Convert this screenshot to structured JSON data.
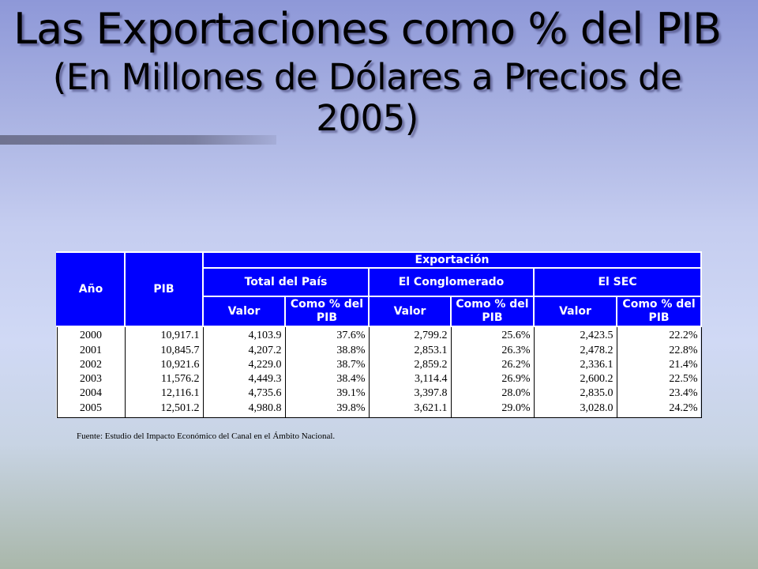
{
  "slide": {
    "title": "Las Exportaciones como % del PIB",
    "subtitle": "(En Millones de Dólares a Precios de 2005)"
  },
  "table": {
    "headers": {
      "year": "Año",
      "pib": "PIB",
      "exportacion": "Exportación",
      "total_pais": "Total del País",
      "conglomerado": "El Conglomerado",
      "sec": "El SEC",
      "valor": "Valor",
      "pct": "Como % del PIB"
    },
    "rows": [
      {
        "year": "2000",
        "pib": "10,917.1",
        "tp_valor": "4,103.9",
        "tp_pct": "37.6%",
        "co_valor": "2,799.2",
        "co_pct": "25.6%",
        "sec_valor": "2,423.5",
        "sec_pct": "22.2%"
      },
      {
        "year": "2001",
        "pib": "10,845.7",
        "tp_valor": "4,207.2",
        "tp_pct": "38.8%",
        "co_valor": "2,853.1",
        "co_pct": "26.3%",
        "sec_valor": "2,478.2",
        "sec_pct": "22.8%"
      },
      {
        "year": "2002",
        "pib": "10,921.6",
        "tp_valor": "4,229.0",
        "tp_pct": "38.7%",
        "co_valor": "2,859.2",
        "co_pct": "26.2%",
        "sec_valor": "2,336.1",
        "sec_pct": "21.4%"
      },
      {
        "year": "2003",
        "pib": "11,576.2",
        "tp_valor": "4,449.3",
        "tp_pct": "38.4%",
        "co_valor": "3,114.4",
        "co_pct": "26.9%",
        "sec_valor": "2,600.2",
        "sec_pct": "22.5%"
      },
      {
        "year": "2004",
        "pib": "12,116.1",
        "tp_valor": "4,735.6",
        "tp_pct": "39.1%",
        "co_valor": "3,397.8",
        "co_pct": "28.0%",
        "sec_valor": "2,835.0",
        "sec_pct": "23.4%"
      },
      {
        "year": "2005",
        "pib": "12,501.2",
        "tp_valor": "4,980.8",
        "tp_pct": "39.8%",
        "co_valor": "3,621.1",
        "co_pct": "29.0%",
        "sec_valor": "3,028.0",
        "sec_pct": "24.2%"
      }
    ]
  },
  "source": "Fuente: Estudio del Impacto Económico del Canal en el Ámbito Nacional.",
  "colors": {
    "header_bg": "#0000ff",
    "header_text": "#ffffff"
  }
}
